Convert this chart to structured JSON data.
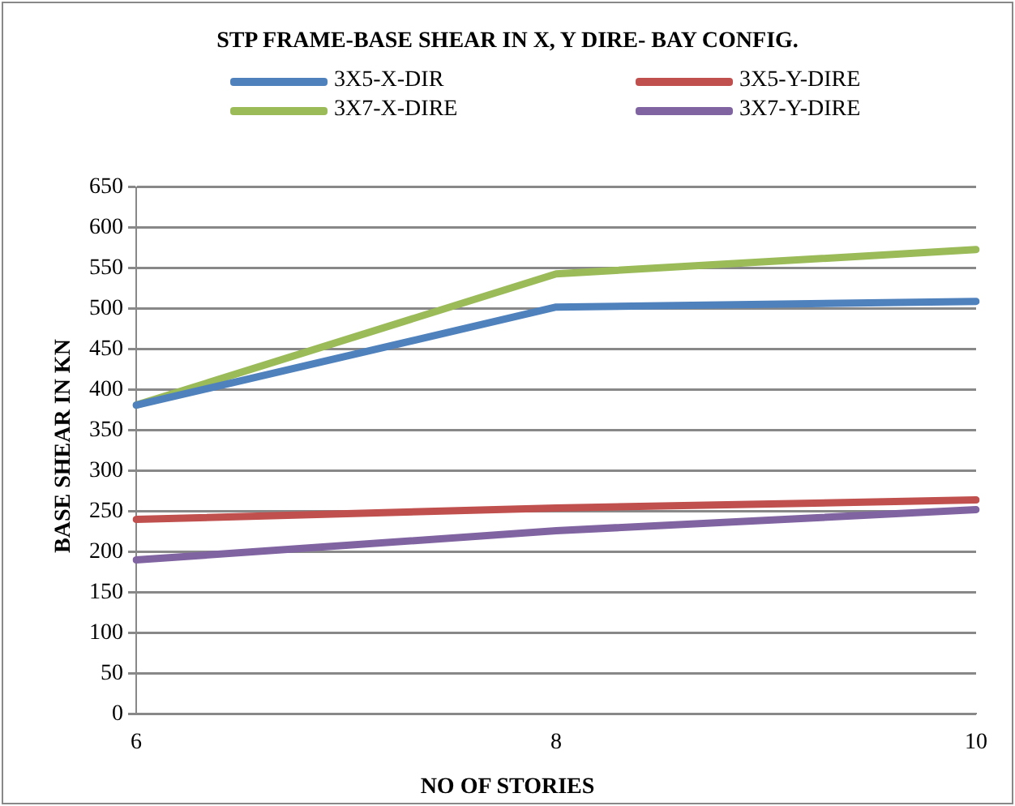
{
  "chart_data": {
    "type": "line",
    "title": "STP FRAME-BASE SHEAR IN X, Y DIRE- BAY CONFIG.",
    "xlabel": "NO OF STORIES",
    "ylabel": "BASE SHEAR IN KN",
    "categories": [
      "6",
      "8",
      "10"
    ],
    "series": [
      {
        "name": "3X5-X-DIR",
        "color": "#4f81bd",
        "values": [
          381,
          502,
          509
        ]
      },
      {
        "name": "3X5-Y-DIRE",
        "color": "#c0504d",
        "values": [
          240,
          254,
          264
        ]
      },
      {
        "name": "3X7-X-DIRE",
        "color": "#9bbb59",
        "values": [
          381,
          543,
          573
        ]
      },
      {
        "name": "3X7-Y-DIRE",
        "color": "#8064a2",
        "values": [
          190,
          226,
          252
        ]
      }
    ],
    "ylim": [
      0,
      650
    ],
    "yticks": [
      0,
      50,
      100,
      150,
      200,
      250,
      300,
      350,
      400,
      450,
      500,
      550,
      600,
      650
    ],
    "grid": "y",
    "legend": "top",
    "marker": "none",
    "line_style": "solid"
  }
}
